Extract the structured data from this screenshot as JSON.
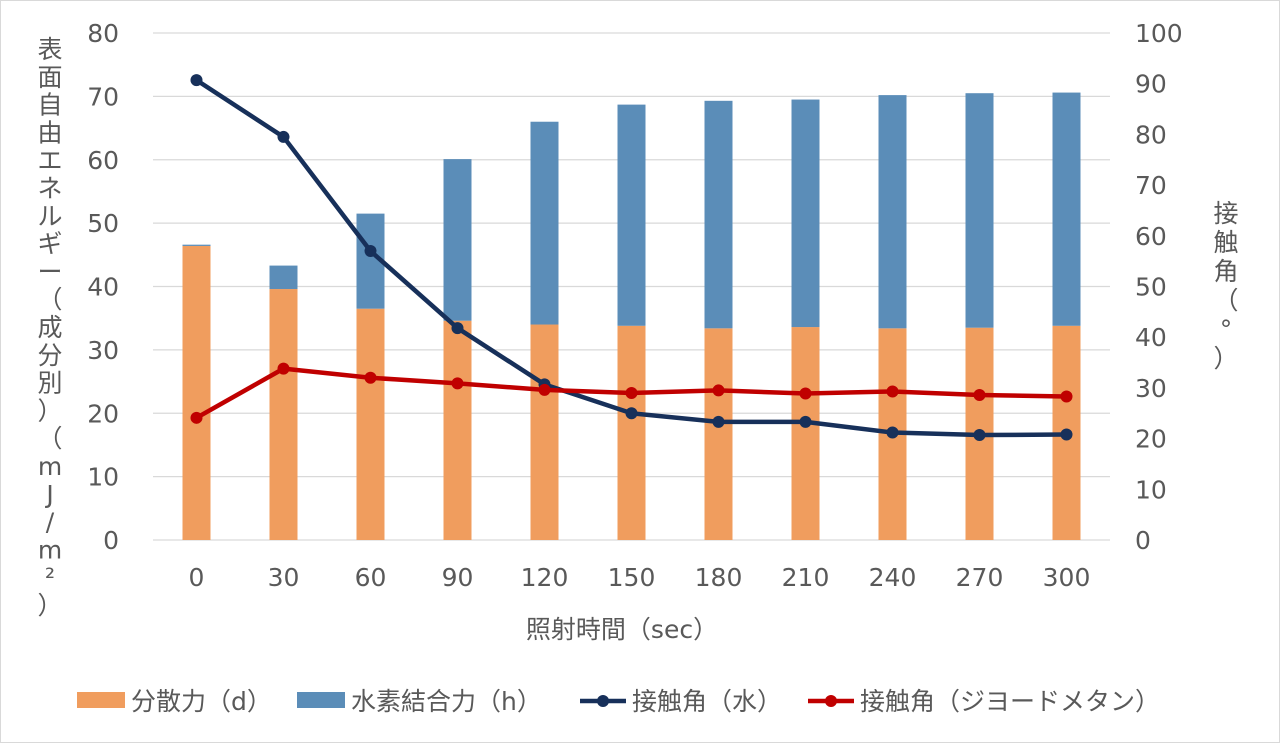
{
  "chart_data": {
    "type": "bar",
    "stacked": true,
    "categories": [
      "0",
      "30",
      "60",
      "90",
      "120",
      "150",
      "180",
      "210",
      "240",
      "270",
      "300"
    ],
    "series": [
      {
        "name": "分散力（d）",
        "type": "bar",
        "axis": "left",
        "color": "#f09d5e",
        "values": [
          46.4,
          39.6,
          36.5,
          34.6,
          34.0,
          33.8,
          33.4,
          33.6,
          33.4,
          33.5,
          33.8
        ]
      },
      {
        "name": "水素結合力（h）",
        "type": "bar",
        "axis": "left",
        "color": "#5b8db8",
        "values": [
          0.2,
          3.7,
          15.0,
          25.5,
          32.0,
          34.9,
          35.9,
          35.9,
          36.8,
          37.0,
          36.8
        ]
      },
      {
        "name": "接触角（水）",
        "type": "line",
        "axis": "right",
        "color": "#17305a",
        "values": [
          90.7,
          79.5,
          57.0,
          41.8,
          30.7,
          25.0,
          23.3,
          23.3,
          21.2,
          20.7,
          20.8
        ]
      },
      {
        "name": "接触角（ジヨードメタン）",
        "type": "line",
        "axis": "right",
        "color": "#c00000",
        "values": [
          24.1,
          33.8,
          32.0,
          30.9,
          29.6,
          29.0,
          29.5,
          28.9,
          29.3,
          28.6,
          28.3
        ]
      }
    ],
    "xlabel": "照射時間（sec）",
    "ylabel": "表面自由エネルギー（成分別）（mJ/m²）",
    "y2label": "接触角（°）",
    "ylim": [
      0,
      80
    ],
    "y2lim": [
      0,
      100
    ],
    "yticks": [
      "0",
      "10",
      "20",
      "30",
      "40",
      "50",
      "60",
      "70",
      "80"
    ],
    "y2ticks": [
      "0",
      "10",
      "20",
      "30",
      "40",
      "50",
      "60",
      "70",
      "80",
      "90",
      "100"
    ],
    "grid": true,
    "legend_position": "bottom"
  }
}
